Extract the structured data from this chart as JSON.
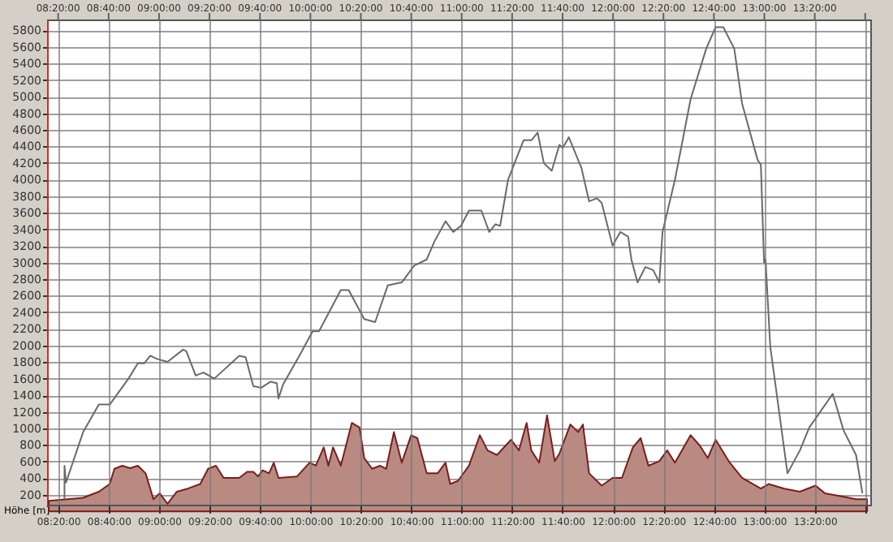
{
  "chart_data": {
    "type": "line",
    "ylabel": "Höhe [m]",
    "xlim": [
      8.26,
      13.7
    ],
    "ylim": [
      80,
      5930
    ],
    "xticks": [
      {
        "value": 8.3333,
        "label": "08:20:00"
      },
      {
        "value": 8.6667,
        "label": "08:40:00"
      },
      {
        "value": 9,
        "label": "09:00:00"
      },
      {
        "value": 9.3333,
        "label": "09:20:00"
      },
      {
        "value": 9.6667,
        "label": "09:40:00"
      },
      {
        "value": 10,
        "label": "10:00:00"
      },
      {
        "value": 10.3333,
        "label": "10:20:00"
      },
      {
        "value": 10.6667,
        "label": "10:40:00"
      },
      {
        "value": 11,
        "label": "11:00:00"
      },
      {
        "value": 11.3333,
        "label": "11:20:00"
      },
      {
        "value": 11.6667,
        "label": "11:40:00"
      },
      {
        "value": 12,
        "label": "12:00:00"
      },
      {
        "value": 12.3333,
        "label": "12:20:00"
      },
      {
        "value": 12.6667,
        "label": "12:40:00"
      },
      {
        "value": 13,
        "label": "13:00:00"
      },
      {
        "value": 13.3333,
        "label": "13:20:00"
      },
      {
        "value": 13.6667,
        "label": null
      }
    ],
    "x2lim": [
      8.26,
      13.7
    ],
    "x2ticks": [
      {
        "value": 8.3333,
        "label": "08:20:00"
      },
      {
        "value": 8.6667,
        "label": "08:40:00"
      },
      {
        "value": 9,
        "label": "09:00:00"
      },
      {
        "value": 9.3333,
        "label": "09:20:00"
      },
      {
        "value": 9.6667,
        "label": "09:40:00"
      },
      {
        "value": 10,
        "label": "10:00:00"
      },
      {
        "value": 10.3333,
        "label": "10:20:00"
      },
      {
        "value": 10.6667,
        "label": "10:40:00"
      },
      {
        "value": 11,
        "label": "11:00:00"
      },
      {
        "value": 11.3333,
        "label": "11:20:00"
      },
      {
        "value": 11.6667,
        "label": "11:40:00"
      },
      {
        "value": 12,
        "label": "12:00:00"
      },
      {
        "value": 12.3333,
        "label": "12:20:00"
      },
      {
        "value": 12.6667,
        "label": "12:40:00"
      },
      {
        "value": 13,
        "label": "13:00:00"
      },
      {
        "value": 13.3333,
        "label": "13:20:00"
      },
      {
        "value": 13.6667,
        "label": null
      }
    ],
    "yticks": [
      200,
      400,
      600,
      800,
      1000,
      1200,
      1400,
      1600,
      1800,
      2000,
      2200,
      2400,
      2600,
      2800,
      3000,
      3200,
      3400,
      3600,
      3800,
      4000,
      4200,
      4400,
      4600,
      4800,
      5000,
      5200,
      5400,
      5600,
      5800
    ],
    "grid": true,
    "series": [
      {
        "type": "area",
        "color": "#b98a82",
        "x": [
          8.271,
          8.395,
          8.498,
          8.602,
          8.674,
          8.705,
          8.757,
          8.808,
          8.86,
          8.911,
          8.963,
          9.004,
          9.056,
          9.118,
          9.19,
          9.272,
          9.324,
          9.376,
          9.427,
          9.53,
          9.582,
          9.623,
          9.654,
          9.685,
          9.727,
          9.758,
          9.789,
          9.912,
          9.995,
          10.036,
          10.088,
          10.119,
          10.15,
          10.201,
          10.274,
          10.325,
          10.356,
          10.408,
          10.459,
          10.501,
          10.552,
          10.604,
          10.666,
          10.707,
          10.769,
          10.841,
          10.893,
          10.924,
          10.975,
          11.048,
          11.12,
          11.171,
          11.233,
          11.326,
          11.378,
          11.429,
          11.46,
          11.512,
          11.564,
          11.615,
          11.646,
          11.718,
          11.77,
          11.801,
          11.842,
          11.925,
          11.997,
          12.059,
          12.131,
          12.183,
          12.234,
          12.306,
          12.358,
          12.409,
          12.513,
          12.575,
          12.626,
          12.678,
          12.771,
          12.853,
          12.925,
          12.977,
          13.028,
          13.132,
          13.235,
          13.338,
          13.4,
          13.504,
          13.607,
          13.679
        ],
        "values": [
          126,
          145,
          163,
          237,
          329,
          513,
          550,
          520,
          550,
          458,
          145,
          218,
          90,
          237,
          274,
          329,
          513,
          550,
          403,
          403,
          476,
          476,
          421,
          495,
          458,
          587,
          403,
          421,
          587,
          550,
          771,
          550,
          771,
          550,
          1066,
          1010,
          642,
          513,
          550,
          513,
          955,
          587,
          918,
          882,
          458,
          458,
          587,
          329,
          366,
          550,
          918,
          734,
          679,
          863,
          734,
          1066,
          734,
          587,
          1158,
          605,
          697,
          1047,
          955,
          1047,
          458,
          310,
          403,
          403,
          771,
          882,
          550,
          605,
          734,
          587,
          918,
          789,
          642,
          863,
          587,
          403,
          329,
          274,
          329,
          274,
          237,
          310,
          218,
          182,
          145,
          145
        ]
      },
      {
        "type": "line",
        "color": "#6a6a6a",
        "x": [
          8.375,
          8.375,
          8.385,
          8.498,
          8.602,
          8.674,
          8.798,
          8.86,
          8.901,
          8.942,
          8.983,
          9.056,
          9.159,
          9.18,
          9.242,
          9.293,
          9.365,
          9.53,
          9.572,
          9.623,
          9.675,
          9.737,
          9.778,
          9.789,
          9.819,
          9.933,
          10.015,
          10.057,
          10.201,
          10.253,
          10.356,
          10.428,
          10.511,
          10.604,
          10.686,
          10.769,
          10.821,
          10.893,
          10.944,
          10.996,
          11.048,
          11.13,
          11.182,
          11.223,
          11.254,
          11.306,
          11.357,
          11.409,
          11.461,
          11.502,
          11.543,
          11.595,
          11.646,
          11.667,
          11.708,
          11.791,
          11.842,
          11.894,
          11.925,
          11.997,
          12.048,
          12.1,
          12.121,
          12.162,
          12.214,
          12.265,
          12.306,
          12.327,
          12.409,
          12.513,
          12.616,
          12.678,
          12.729,
          12.801,
          12.853,
          12.956,
          12.977,
          12.998,
          13.008,
          13.039,
          13.153,
          13.235,
          13.297,
          13.452,
          13.524,
          13.606,
          13.648
        ],
        "values": [
          145,
          550,
          347,
          955,
          1287,
          1287,
          1600,
          1784,
          1784,
          1876,
          1840,
          1802,
          1950,
          1930,
          1637,
          1674,
          1600,
          1876,
          1858,
          1508,
          1490,
          1563,
          1545,
          1360,
          1527,
          1895,
          2171,
          2171,
          2668,
          2668,
          2318,
          2281,
          2723,
          2760,
          2963,
          3037,
          3258,
          3497,
          3368,
          3442,
          3626,
          3626,
          3368,
          3460,
          3442,
          3995,
          4234,
          4474,
          4474,
          4566,
          4197,
          4105,
          4418,
          4380,
          4510,
          4142,
          3737,
          3774,
          3720,
          3202,
          3368,
          3313,
          3037,
          2760,
          2945,
          2908,
          2760,
          3368,
          3995,
          4971,
          5579,
          5837,
          5837,
          5579,
          4916,
          4234,
          4180,
          3000,
          3037,
          1987,
          458,
          734,
          1010,
          1416,
          974,
          679,
          218
        ]
      }
    ]
  }
}
